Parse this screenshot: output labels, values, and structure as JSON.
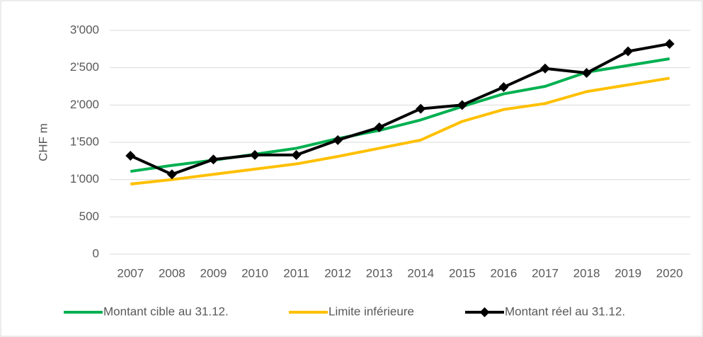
{
  "chart_data": {
    "type": "line",
    "ylabel": "CHF m",
    "categories": [
      "2007",
      "2008",
      "2009",
      "2010",
      "2011",
      "2012",
      "2013",
      "2014",
      "2015",
      "2016",
      "2017",
      "2018",
      "2019",
      "2020"
    ],
    "series": [
      {
        "name": "Montant cible au 31.12.",
        "color": "#00b050",
        "values": [
          1110,
          1190,
          1260,
          1340,
          1420,
          1550,
          1660,
          1800,
          1980,
          2150,
          2250,
          2440,
          2530,
          2620
        ]
      },
      {
        "name": "Limite inférieure",
        "color": "#ffc000",
        "values": [
          940,
          1000,
          1070,
          1140,
          1210,
          1310,
          1420,
          1530,
          1780,
          1940,
          2020,
          2180,
          2270,
          2360
        ]
      },
      {
        "name": "Montant réel au 31.12.",
        "color": "#000000",
        "marker": "diamond",
        "values": [
          1320,
          1070,
          1270,
          1330,
          1330,
          1530,
          1700,
          1950,
          2000,
          2240,
          2490,
          2430,
          2720,
          2820
        ]
      }
    ],
    "ylim": [
      0,
      3000
    ],
    "yticks": [
      0,
      500,
      {
        "value": 1000,
        "label": "1'000"
      },
      {
        "value": 1500,
        "label": "1'500"
      },
      {
        "value": 2000,
        "label": "2'000"
      },
      {
        "value": 2500,
        "label": "2'500"
      },
      {
        "value": 3000,
        "label": "3'000"
      }
    ],
    "grid": true,
    "legend": "bottom"
  }
}
